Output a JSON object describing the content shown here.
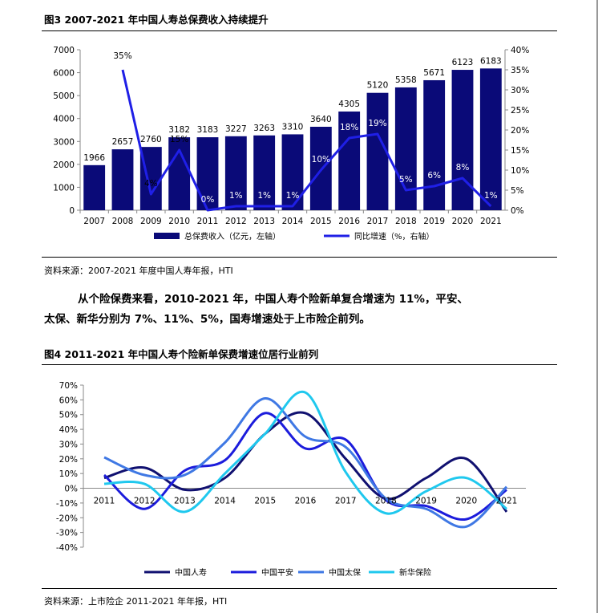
{
  "figure3": {
    "title": "图3  2007-2021 年中国人寿总保费收入持续提升",
    "source": "资料来源：2007-2021 年度中国人寿年报，HTI",
    "colors": {
      "bar": "#0a0a78",
      "line": "#1f1fe6"
    },
    "chart_data": {
      "type": "bar",
      "categories": [
        "2007",
        "2008",
        "2009",
        "2010",
        "2011",
        "2012",
        "2013",
        "2014",
        "2015",
        "2016",
        "2017",
        "2018",
        "2019",
        "2020",
        "2021"
      ],
      "series": [
        {
          "name": "总保费收入（亿元，左轴）",
          "type": "bar",
          "axis": "left",
          "values": [
            1966,
            2657,
            2760,
            3182,
            3183,
            3227,
            3263,
            3310,
            3640,
            4305,
            5120,
            5358,
            5671,
            6123,
            6183
          ],
          "labels": [
            "1966",
            "2657",
            "2760",
            "3182",
            "3183",
            "3227",
            "3263",
            "3310",
            "3640",
            "4305",
            "5120",
            "5358",
            "5671",
            "6123",
            "6183"
          ]
        },
        {
          "name": "同比增速（%，右轴）",
          "type": "line",
          "axis": "right",
          "values": [
            null,
            35,
            4,
            15,
            0,
            1,
            1,
            1,
            10,
            18,
            19,
            5,
            6,
            8,
            1
          ],
          "labels": [
            "",
            "35%",
            "4%",
            "15%",
            "0%",
            "1%",
            "1%",
            "1%",
            "10%",
            "18%",
            "19%",
            "5%",
            "6%",
            "8%",
            "1%"
          ]
        }
      ],
      "ylim_left": [
        0,
        7000
      ],
      "yticks_left": [
        "0",
        "1000",
        "2000",
        "3000",
        "4000",
        "5000",
        "6000",
        "7000"
      ],
      "ylim_right": [
        0,
        40
      ],
      "yticks_right": [
        "0%",
        "5%",
        "10%",
        "15%",
        "20%",
        "25%",
        "30%",
        "35%",
        "40%"
      ],
      "grid": false,
      "legend": "bottom"
    }
  },
  "paragraph": {
    "line1": "从个险保费来看，2010-2021 年，中国人寿个险新单复合增速为 11%，平安、",
    "line2": "太保、新华分别为 7%、11%、5%，国寿增速处于上市险企前列。"
  },
  "figure4": {
    "title": "图4  2011-2021 年中国人寿个险新单保费增速位居行业前列",
    "source": "资料来源：上市险企 2011-2021 年年报，HTI",
    "chart_data": {
      "type": "line",
      "x": [
        "2011",
        "2012",
        "2013",
        "2014",
        "2015",
        "2016",
        "2017",
        "2018",
        "2019",
        "2020",
        "2021"
      ],
      "series": [
        {
          "name": "中国人寿",
          "color": "#101070",
          "values": [
            7,
            14,
            -1,
            7,
            37,
            51,
            20,
            -7,
            7,
            20,
            -16
          ]
        },
        {
          "name": "中国平安",
          "color": "#1c1cdc",
          "values": [
            9,
            -14,
            12,
            19,
            51,
            27,
            33,
            -8,
            -12,
            -21,
            -1
          ]
        },
        {
          "name": "中国太保",
          "color": "#3f78e4",
          "values": [
            21,
            9,
            9,
            31,
            61,
            35,
            28,
            -7,
            -14,
            -26,
            1
          ]
        },
        {
          "name": "新华保险",
          "color": "#1fc8ee",
          "values": [
            3,
            3,
            -16,
            10,
            37,
            65,
            11,
            -17,
            -2,
            7,
            -14
          ]
        }
      ],
      "ylim": [
        -40,
        70
      ],
      "yticks": [
        "-40%",
        "-30%",
        "-20%",
        "-10%",
        "0%",
        "10%",
        "20%",
        "30%",
        "40%",
        "50%",
        "60%",
        "70%"
      ],
      "grid": false,
      "legend": "bottom"
    }
  }
}
